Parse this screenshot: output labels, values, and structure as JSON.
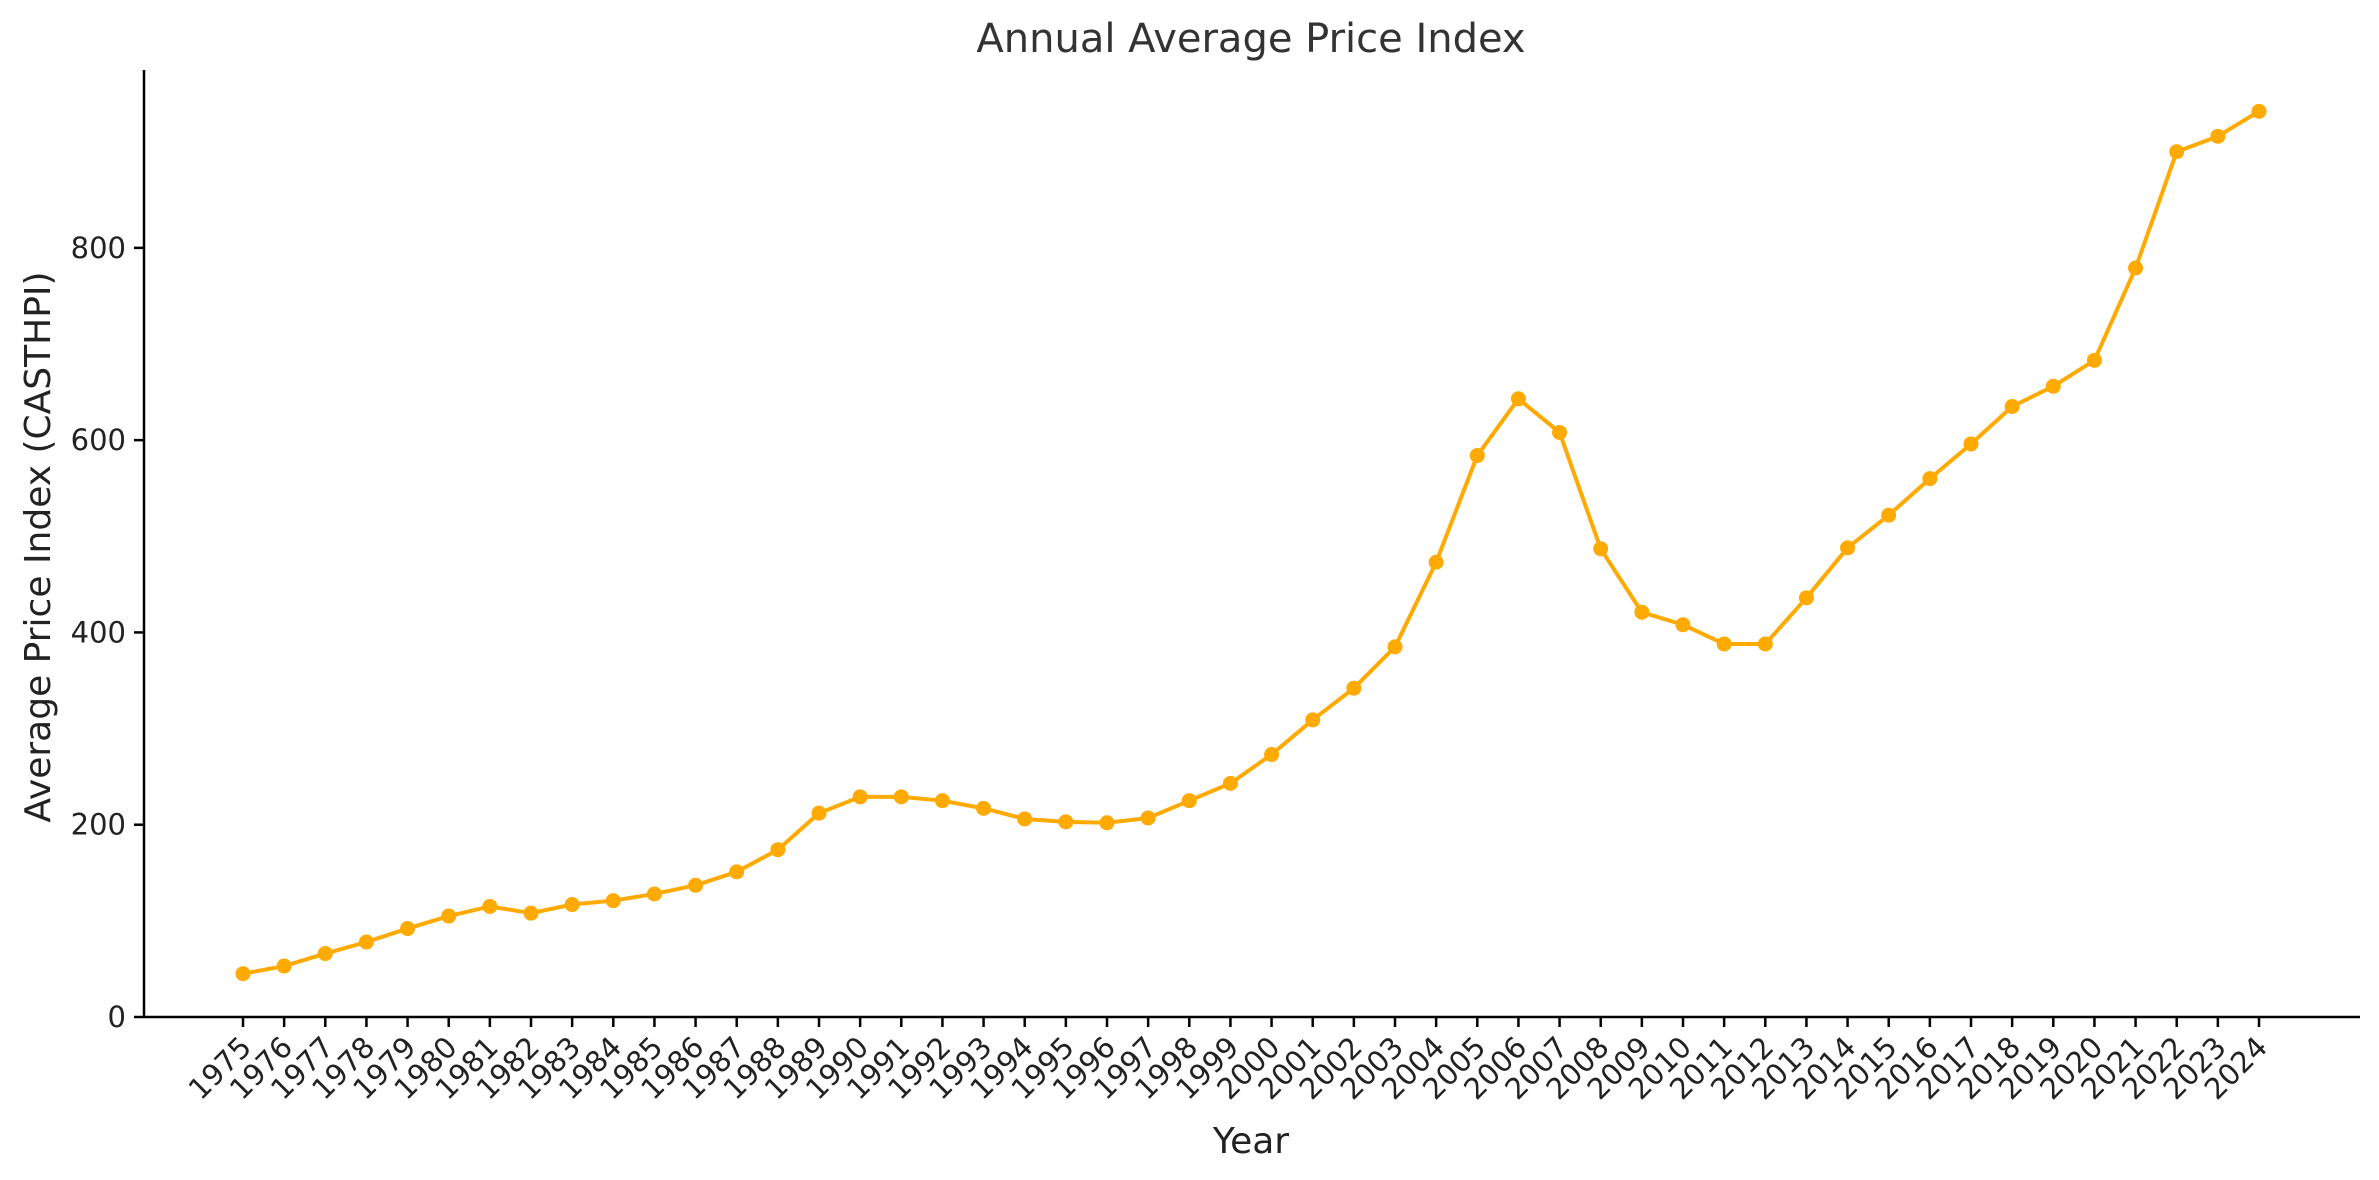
{
  "chart_data": {
    "type": "line",
    "title": "Annual Average Price Index",
    "xlabel": "Year",
    "ylabel": "Average Price Index (CASTHPI)",
    "ylim": [
      0,
      985
    ],
    "yticks": [
      0,
      200,
      400,
      600,
      800
    ],
    "grid": false,
    "legend": "none",
    "color": "#FFAA00",
    "categories": [
      "1975",
      "1976",
      "1977",
      "1978",
      "1979",
      "1980",
      "1981",
      "1982",
      "1983",
      "1984",
      "1985",
      "1986",
      "1987",
      "1988",
      "1989",
      "1990",
      "1991",
      "1992",
      "1993",
      "1994",
      "1995",
      "1996",
      "1997",
      "1998",
      "1999",
      "2000",
      "2001",
      "2002",
      "2003",
      "2004",
      "2005",
      "2006",
      "2007",
      "2008",
      "2009",
      "2010",
      "2011",
      "2012",
      "2013",
      "2014",
      "2015",
      "2016",
      "2017",
      "2018",
      "2019",
      "2020",
      "2021",
      "2022",
      "2023",
      "2024"
    ],
    "series": [
      {
        "values": [
          45,
          53,
          66,
          78,
          92,
          105,
          115,
          108,
          117,
          121,
          128,
          137,
          151,
          174,
          212,
          229,
          229,
          225,
          217,
          206,
          203,
          202,
          207,
          225,
          243,
          273,
          309,
          342,
          385,
          473,
          584,
          643,
          608,
          487,
          421,
          408,
          388,
          388,
          436,
          488,
          522,
          560,
          596,
          635,
          656,
          683,
          779,
          900,
          916,
          942
        ]
      }
    ]
  }
}
